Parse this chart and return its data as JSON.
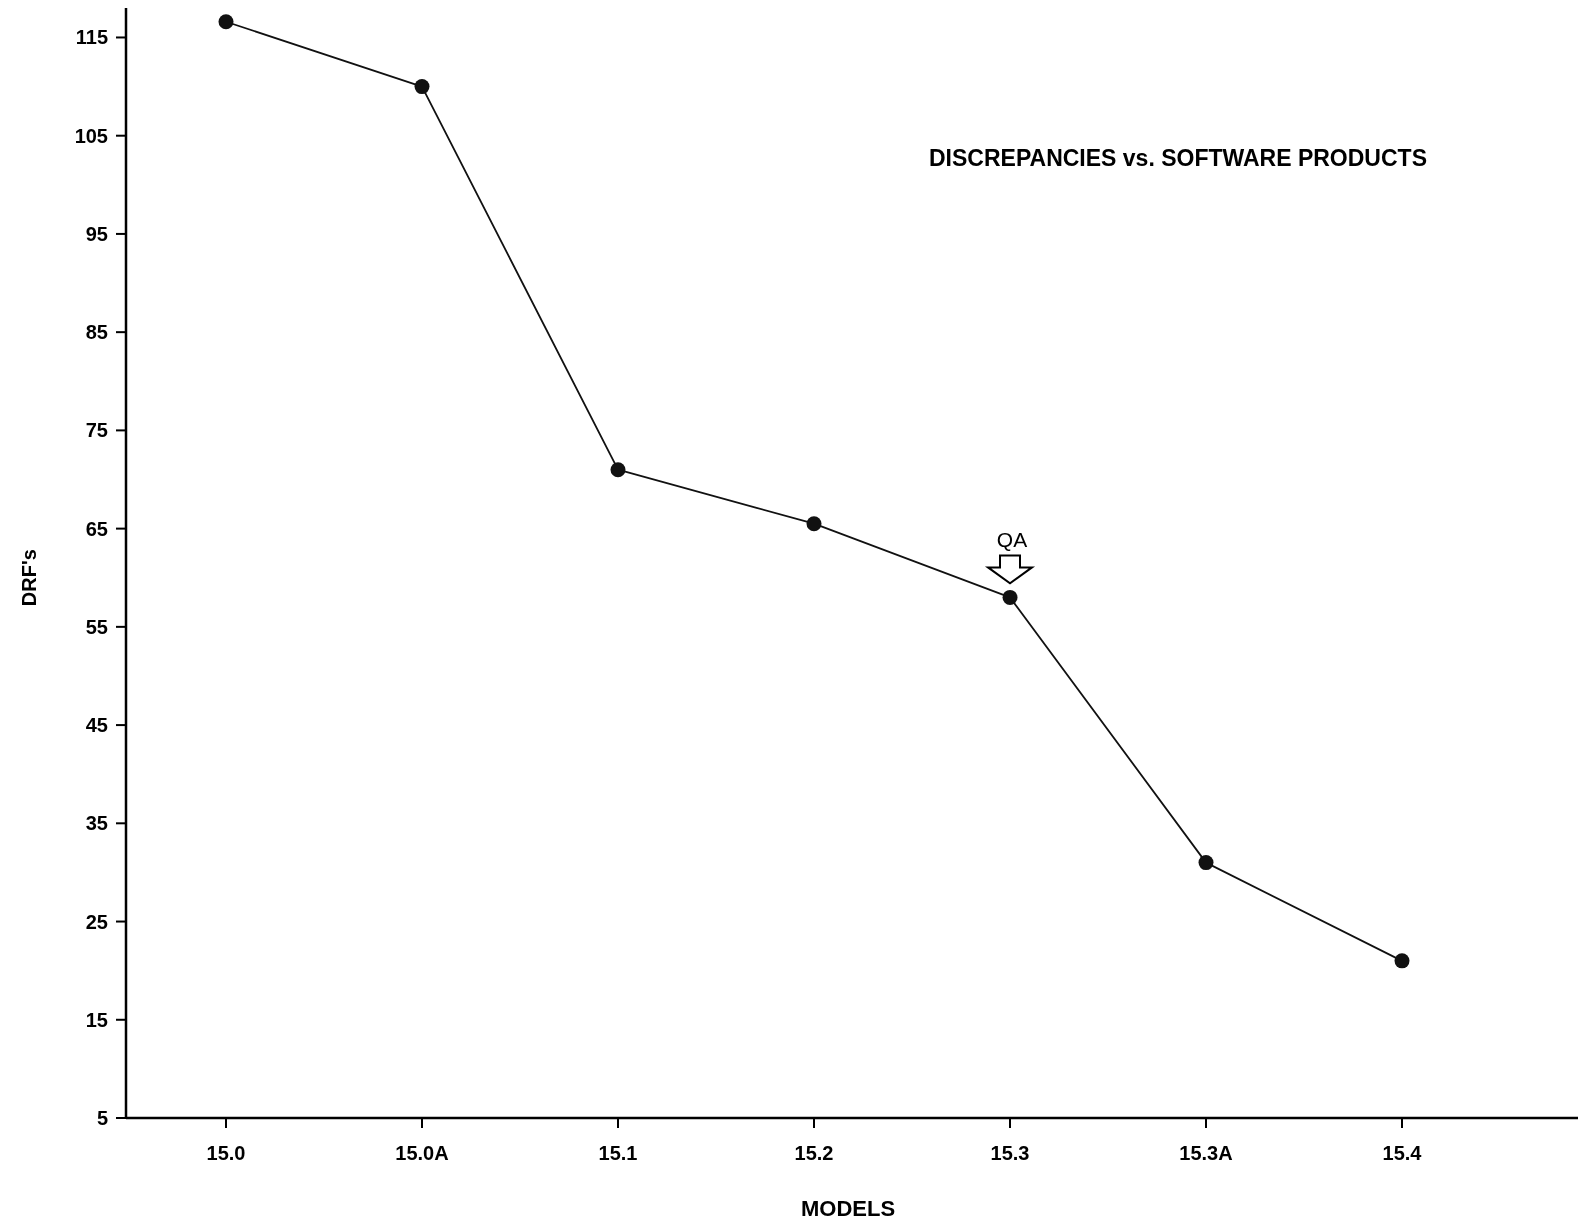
{
  "chart_data": {
    "type": "line",
    "title": "DISCREPANCIES vs. SOFTWARE PRODUCTS",
    "xlabel": "MODELS",
    "ylabel": "DRF's",
    "categories": [
      "15.0",
      "15.0A",
      "15.1",
      "15.2",
      "15.3",
      "15.3A",
      "15.4"
    ],
    "series": [
      {
        "color": "#111111",
        "values": [
          116.6,
          110,
          71,
          65.5,
          58,
          31,
          21
        ]
      }
    ],
    "ylim": [
      5,
      118
    ],
    "yticks": [
      5,
      15,
      25,
      35,
      45,
      55,
      65,
      75,
      85,
      95,
      105,
      115
    ],
    "marker": "circle",
    "line_style": "solid",
    "annotations": [
      {
        "text": "QA",
        "x": "15.3",
        "y": 58
      }
    ]
  }
}
